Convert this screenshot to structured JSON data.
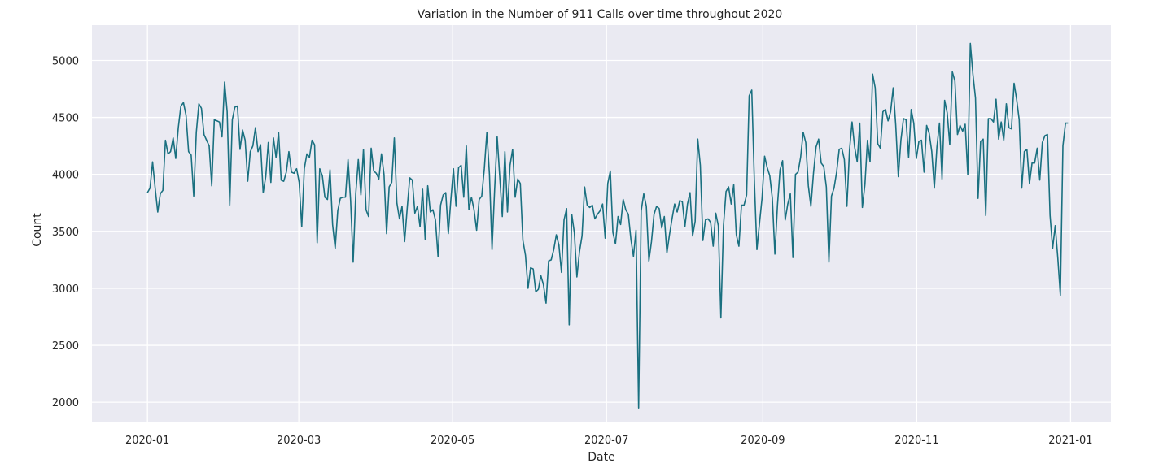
{
  "chart_data": {
    "type": "line",
    "title": "Variation in the Number of 911 Calls over time throughout 2020",
    "xlabel": "Date",
    "ylabel": "Count",
    "grid": true,
    "legend": "none",
    "xlim": [
      "2019-12-10",
      "2021-01-17"
    ],
    "ylim": [
      1830,
      5310
    ],
    "x_ticks": [
      "2020-01-01",
      "2020-03-01",
      "2020-05-01",
      "2020-07-01",
      "2020-09-01",
      "2020-11-01",
      "2021-01-01"
    ],
    "x_tick_labels": [
      "2020-01",
      "2020-03",
      "2020-05",
      "2020-07",
      "2020-09",
      "2020-11",
      "2021-01"
    ],
    "y_ticks": [
      2000,
      2500,
      3000,
      3500,
      4000,
      4500,
      5000
    ],
    "colors": {
      "line": "#1a7080",
      "plot_bg": "#eaeaf2",
      "grid": "#ffffff"
    },
    "series": [
      {
        "start": "2020-01-01",
        "end": "2020-12-31",
        "values": [
          3840,
          3880,
          4110,
          3880,
          3670,
          3830,
          3860,
          4300,
          4180,
          4200,
          4320,
          4140,
          4410,
          4600,
          4630,
          4520,
          4200,
          4170,
          3810,
          4370,
          4620,
          4580,
          4350,
          4300,
          4250,
          3900,
          4480,
          4470,
          4460,
          4330,
          4810,
          4550,
          3730,
          4480,
          4590,
          4600,
          4220,
          4390,
          4300,
          3940,
          4200,
          4250,
          4410,
          4200,
          4260,
          3840,
          3980,
          4280,
          3930,
          4320,
          4150,
          4370,
          3950,
          3940,
          4020,
          4200,
          4020,
          4010,
          4050,
          3930,
          3540,
          4050,
          4180,
          4150,
          4300,
          4260,
          3400,
          4050,
          3990,
          3800,
          3780,
          4040,
          3560,
          3350,
          3680,
          3790,
          3800,
          3800,
          4130,
          3770,
          3230,
          3830,
          4130,
          3820,
          4220,
          3690,
          3630,
          4230,
          4030,
          4010,
          3960,
          4180,
          4000,
          3480,
          3890,
          3930,
          4320,
          3750,
          3610,
          3720,
          3410,
          3700,
          3970,
          3950,
          3660,
          3720,
          3540,
          3870,
          3430,
          3900,
          3670,
          3690,
          3600,
          3280,
          3730,
          3820,
          3840,
          3480,
          3780,
          4050,
          3720,
          4060,
          4080,
          3800,
          4250,
          3690,
          3800,
          3690,
          3510,
          3780,
          3810,
          4050,
          4370,
          4000,
          3340,
          3860,
          4330,
          3980,
          3630,
          4200,
          3670,
          4080,
          4220,
          3800,
          3960,
          3920,
          3420,
          3290,
          3000,
          3180,
          3170,
          2970,
          2990,
          3110,
          3030,
          2870,
          3240,
          3250,
          3340,
          3470,
          3380,
          3140,
          3600,
          3700,
          2680,
          3650,
          3490,
          3100,
          3320,
          3460,
          3890,
          3730,
          3710,
          3730,
          3610,
          3650,
          3680,
          3740,
          3440,
          3920,
          4030,
          3490,
          3390,
          3630,
          3560,
          3780,
          3690,
          3650,
          3430,
          3280,
          3510,
          1950,
          3680,
          3830,
          3720,
          3240,
          3410,
          3650,
          3720,
          3700,
          3530,
          3630,
          3310,
          3470,
          3610,
          3740,
          3670,
          3770,
          3760,
          3540,
          3740,
          3840,
          3460,
          3590,
          4310,
          4080,
          3420,
          3600,
          3610,
          3580,
          3370,
          3660,
          3550,
          2740,
          3550,
          3850,
          3890,
          3740,
          3910,
          3470,
          3370,
          3730,
          3730,
          3820,
          4690,
          4740,
          3950,
          3340,
          3570,
          3790,
          4160,
          4060,
          3990,
          3790,
          3300,
          3730,
          4040,
          4120,
          3600,
          3740,
          3830,
          3270,
          4000,
          4020,
          4150,
          4370,
          4280,
          3900,
          3720,
          4010,
          4240,
          4310,
          4100,
          4070,
          3890,
          3230,
          3810,
          3880,
          4020,
          4220,
          4230,
          4130,
          3720,
          4210,
          4460,
          4240,
          4110,
          4450,
          3710,
          3910,
          4300,
          4110,
          4880,
          4760,
          4270,
          4230,
          4550,
          4570,
          4470,
          4550,
          4760,
          4430,
          3980,
          4300,
          4490,
          4480,
          4150,
          4570,
          4450,
          4140,
          4290,
          4300,
          4020,
          4430,
          4360,
          4200,
          3880,
          4240,
          4450,
          3960,
          4650,
          4540,
          4260,
          4900,
          4820,
          4350,
          4430,
          4380,
          4440,
          4000,
          5150,
          4880,
          4670,
          3790,
          4290,
          4310,
          3640,
          4490,
          4490,
          4460,
          4660,
          4310,
          4460,
          4300,
          4620,
          4410,
          4400,
          4800,
          4660,
          4480,
          3880,
          4200,
          4220,
          3920,
          4100,
          4100,
          4230,
          3950,
          4280,
          4340,
          4350,
          3640,
          3350,
          3550,
          3270,
          2940,
          4250,
          4450,
          4450
        ]
      }
    ]
  }
}
